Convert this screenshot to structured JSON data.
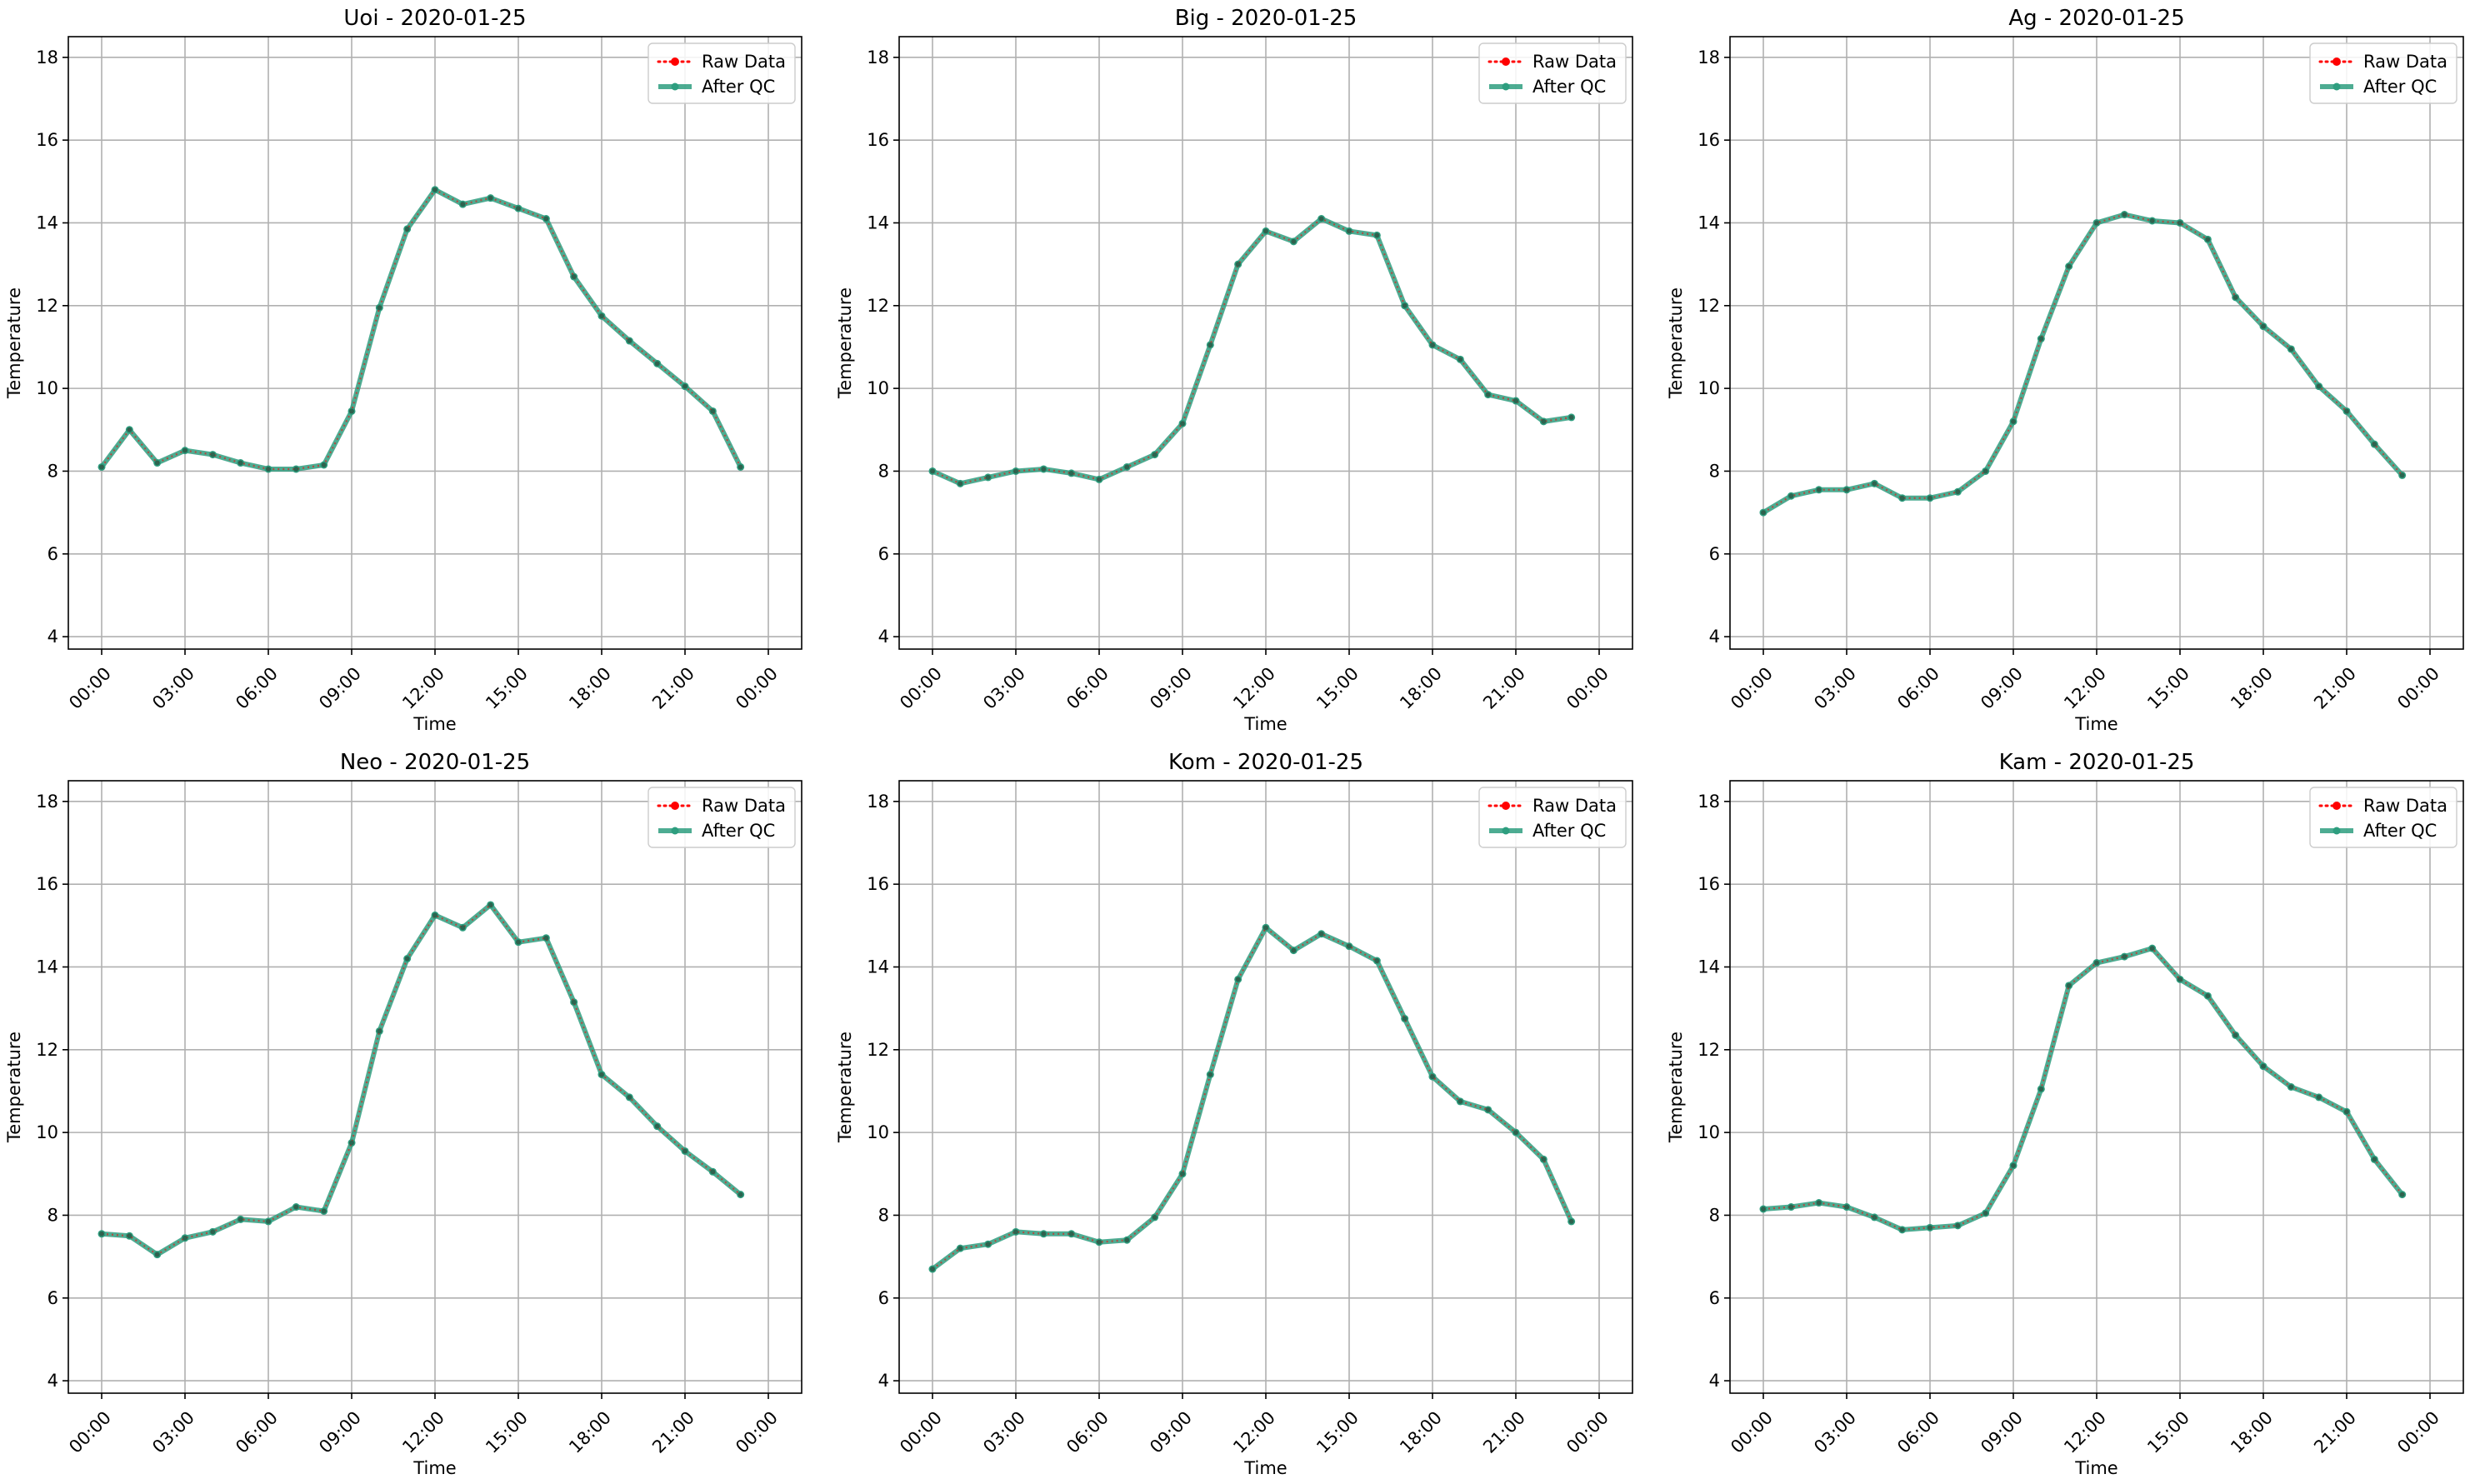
{
  "chart_data": [
    {
      "type": "line",
      "title": "Uoi - 2020-01-25",
      "xlabel": "Time",
      "ylabel": "Temperature",
      "ylim": [
        3.7,
        18.5
      ],
      "yticks": [
        "4",
        "6",
        "8",
        "10",
        "12",
        "14",
        "16",
        "18"
      ],
      "xticks": [
        "00:00",
        "03:00",
        "06:00",
        "09:00",
        "12:00",
        "15:00",
        "18:00",
        "21:00",
        "00:00"
      ],
      "grid": true,
      "legend": "top-right",
      "x": [
        "00:00",
        "01:00",
        "02:00",
        "03:00",
        "04:00",
        "05:00",
        "06:00",
        "07:00",
        "08:00",
        "09:00",
        "10:00",
        "11:00",
        "12:00",
        "13:00",
        "14:00",
        "15:00",
        "16:00",
        "17:00",
        "18:00",
        "19:00",
        "20:00",
        "21:00",
        "22:00",
        "23:00"
      ],
      "series": [
        {
          "name": "Raw Data",
          "color": "#ff0000",
          "values": [
            8.1,
            9.0,
            8.2,
            8.5,
            8.4,
            8.2,
            8.05,
            8.05,
            8.15,
            9.45,
            11.95,
            13.85,
            14.8,
            14.45,
            14.6,
            14.35,
            14.1,
            12.7,
            11.75,
            11.15,
            10.6,
            10.05,
            9.45,
            8.1
          ]
        },
        {
          "name": "After QC",
          "color": "#2e9e7f",
          "values": [
            8.1,
            9.0,
            8.2,
            8.5,
            8.4,
            8.2,
            8.05,
            8.05,
            8.15,
            9.45,
            11.95,
            13.85,
            14.8,
            14.45,
            14.6,
            14.35,
            14.1,
            12.7,
            11.75,
            11.15,
            10.6,
            10.05,
            9.45,
            8.1
          ]
        }
      ]
    },
    {
      "type": "line",
      "title": "Big - 2020-01-25",
      "xlabel": "Time",
      "ylabel": "Temperature",
      "ylim": [
        3.7,
        18.5
      ],
      "yticks": [
        "4",
        "6",
        "8",
        "10",
        "12",
        "14",
        "16",
        "18"
      ],
      "xticks": [
        "00:00",
        "03:00",
        "06:00",
        "09:00",
        "12:00",
        "15:00",
        "18:00",
        "21:00",
        "00:00"
      ],
      "grid": true,
      "legend": "top-right",
      "x": [
        "00:00",
        "01:00",
        "02:00",
        "03:00",
        "04:00",
        "05:00",
        "06:00",
        "07:00",
        "08:00",
        "09:00",
        "10:00",
        "11:00",
        "12:00",
        "13:00",
        "14:00",
        "15:00",
        "16:00",
        "17:00",
        "18:00",
        "19:00",
        "20:00",
        "21:00",
        "22:00",
        "23:00"
      ],
      "series": [
        {
          "name": "Raw Data",
          "color": "#ff0000",
          "values": [
            8.0,
            7.7,
            7.85,
            8.0,
            8.05,
            7.95,
            7.8,
            8.1,
            8.4,
            9.15,
            11.05,
            13.0,
            13.8,
            13.55,
            14.1,
            13.8,
            13.7,
            12.0,
            11.05,
            10.7,
            9.85,
            9.7,
            9.2,
            9.3
          ]
        },
        {
          "name": "After QC",
          "color": "#2e9e7f",
          "values": [
            8.0,
            7.7,
            7.85,
            8.0,
            8.05,
            7.95,
            7.8,
            8.1,
            8.4,
            9.15,
            11.05,
            13.0,
            13.8,
            13.55,
            14.1,
            13.8,
            13.7,
            12.0,
            11.05,
            10.7,
            9.85,
            9.7,
            9.2,
            9.3
          ]
        }
      ]
    },
    {
      "type": "line",
      "title": "Ag - 2020-01-25",
      "xlabel": "Time",
      "ylabel": "Temperature",
      "ylim": [
        3.7,
        18.5
      ],
      "yticks": [
        "4",
        "6",
        "8",
        "10",
        "12",
        "14",
        "16",
        "18"
      ],
      "xticks": [
        "00:00",
        "03:00",
        "06:00",
        "09:00",
        "12:00",
        "15:00",
        "18:00",
        "21:00",
        "00:00"
      ],
      "grid": true,
      "legend": "top-right",
      "x": [
        "00:00",
        "01:00",
        "02:00",
        "03:00",
        "04:00",
        "05:00",
        "06:00",
        "07:00",
        "08:00",
        "09:00",
        "10:00",
        "11:00",
        "12:00",
        "13:00",
        "14:00",
        "15:00",
        "16:00",
        "17:00",
        "18:00",
        "19:00",
        "20:00",
        "21:00",
        "22:00",
        "23:00"
      ],
      "series": [
        {
          "name": "Raw Data",
          "color": "#ff0000",
          "values": [
            7.0,
            7.4,
            7.55,
            7.55,
            7.7,
            7.35,
            7.35,
            7.5,
            8.0,
            9.2,
            11.2,
            12.95,
            14.0,
            14.2,
            14.05,
            14.0,
            13.6,
            12.2,
            11.5,
            10.95,
            10.05,
            9.45,
            8.65,
            7.9
          ]
        },
        {
          "name": "After QC",
          "color": "#2e9e7f",
          "values": [
            7.0,
            7.4,
            7.55,
            7.55,
            7.7,
            7.35,
            7.35,
            7.5,
            8.0,
            9.2,
            11.2,
            12.95,
            14.0,
            14.2,
            14.05,
            14.0,
            13.6,
            12.2,
            11.5,
            10.95,
            10.05,
            9.45,
            8.65,
            7.9
          ]
        }
      ]
    },
    {
      "type": "line",
      "title": "Neo - 2020-01-25",
      "xlabel": "Time",
      "ylabel": "Temperature",
      "ylim": [
        3.7,
        18.5
      ],
      "yticks": [
        "4",
        "6",
        "8",
        "10",
        "12",
        "14",
        "16",
        "18"
      ],
      "xticks": [
        "00:00",
        "03:00",
        "06:00",
        "09:00",
        "12:00",
        "15:00",
        "18:00",
        "21:00",
        "00:00"
      ],
      "grid": true,
      "legend": "top-right",
      "x": [
        "00:00",
        "01:00",
        "02:00",
        "03:00",
        "04:00",
        "05:00",
        "06:00",
        "07:00",
        "08:00",
        "09:00",
        "10:00",
        "11:00",
        "12:00",
        "13:00",
        "14:00",
        "15:00",
        "16:00",
        "17:00",
        "18:00",
        "19:00",
        "20:00",
        "21:00",
        "22:00",
        "23:00"
      ],
      "series": [
        {
          "name": "Raw Data",
          "color": "#ff0000",
          "values": [
            7.55,
            7.5,
            7.05,
            7.45,
            7.6,
            7.9,
            7.85,
            8.2,
            8.1,
            9.75,
            12.45,
            14.2,
            15.25,
            14.95,
            15.5,
            14.6,
            14.7,
            13.15,
            11.4,
            10.85,
            10.15,
            9.55,
            9.05,
            8.5
          ]
        },
        {
          "name": "After QC",
          "color": "#2e9e7f",
          "values": [
            7.55,
            7.5,
            7.05,
            7.45,
            7.6,
            7.9,
            7.85,
            8.2,
            8.1,
            9.75,
            12.45,
            14.2,
            15.25,
            14.95,
            15.5,
            14.6,
            14.7,
            13.15,
            11.4,
            10.85,
            10.15,
            9.55,
            9.05,
            8.5
          ]
        }
      ]
    },
    {
      "type": "line",
      "title": "Kom - 2020-01-25",
      "xlabel": "Time",
      "ylabel": "Temperature",
      "ylim": [
        3.7,
        18.5
      ],
      "yticks": [
        "4",
        "6",
        "8",
        "10",
        "12",
        "14",
        "16",
        "18"
      ],
      "xticks": [
        "00:00",
        "03:00",
        "06:00",
        "09:00",
        "12:00",
        "15:00",
        "18:00",
        "21:00",
        "00:00"
      ],
      "grid": true,
      "legend": "top-right",
      "x": [
        "00:00",
        "01:00",
        "02:00",
        "03:00",
        "04:00",
        "05:00",
        "06:00",
        "07:00",
        "08:00",
        "09:00",
        "10:00",
        "11:00",
        "12:00",
        "13:00",
        "14:00",
        "15:00",
        "16:00",
        "17:00",
        "18:00",
        "19:00",
        "20:00",
        "21:00",
        "22:00",
        "23:00"
      ],
      "series": [
        {
          "name": "Raw Data",
          "color": "#ff0000",
          "values": [
            6.7,
            7.2,
            7.3,
            7.6,
            7.55,
            7.55,
            7.35,
            7.4,
            7.95,
            9.0,
            11.4,
            13.7,
            14.95,
            14.4,
            14.8,
            14.5,
            14.15,
            12.75,
            11.35,
            10.75,
            10.55,
            10.0,
            9.35,
            7.85
          ]
        },
        {
          "name": "After QC",
          "color": "#2e9e7f",
          "values": [
            6.7,
            7.2,
            7.3,
            7.6,
            7.55,
            7.55,
            7.35,
            7.4,
            7.95,
            9.0,
            11.4,
            13.7,
            14.95,
            14.4,
            14.8,
            14.5,
            14.15,
            12.75,
            11.35,
            10.75,
            10.55,
            10.0,
            9.35,
            7.85
          ]
        }
      ]
    },
    {
      "type": "line",
      "title": "Kam - 2020-01-25",
      "xlabel": "Time",
      "ylabel": "Temperature",
      "ylim": [
        3.7,
        18.5
      ],
      "yticks": [
        "4",
        "6",
        "8",
        "10",
        "12",
        "14",
        "16",
        "18"
      ],
      "xticks": [
        "00:00",
        "03:00",
        "06:00",
        "09:00",
        "12:00",
        "15:00",
        "18:00",
        "21:00",
        "00:00"
      ],
      "grid": true,
      "legend": "top-right",
      "x": [
        "00:00",
        "01:00",
        "02:00",
        "03:00",
        "04:00",
        "05:00",
        "06:00",
        "07:00",
        "08:00",
        "09:00",
        "10:00",
        "11:00",
        "12:00",
        "13:00",
        "14:00",
        "15:00",
        "16:00",
        "17:00",
        "18:00",
        "19:00",
        "20:00",
        "21:00",
        "22:00",
        "23:00"
      ],
      "series": [
        {
          "name": "Raw Data",
          "color": "#ff0000",
          "values": [
            8.15,
            8.2,
            8.3,
            8.2,
            7.95,
            7.65,
            7.7,
            7.75,
            8.05,
            9.2,
            11.05,
            13.55,
            14.1,
            14.25,
            14.45,
            13.7,
            13.3,
            12.35,
            11.6,
            11.1,
            10.85,
            10.5,
            9.35,
            8.5
          ]
        },
        {
          "name": "After QC",
          "color": "#2e9e7f",
          "values": [
            8.15,
            8.2,
            8.3,
            8.2,
            7.95,
            7.65,
            7.7,
            7.75,
            8.05,
            9.2,
            11.05,
            13.55,
            14.1,
            14.25,
            14.45,
            13.7,
            13.3,
            12.35,
            11.6,
            11.1,
            10.85,
            10.5,
            9.35,
            8.5
          ]
        }
      ]
    }
  ]
}
